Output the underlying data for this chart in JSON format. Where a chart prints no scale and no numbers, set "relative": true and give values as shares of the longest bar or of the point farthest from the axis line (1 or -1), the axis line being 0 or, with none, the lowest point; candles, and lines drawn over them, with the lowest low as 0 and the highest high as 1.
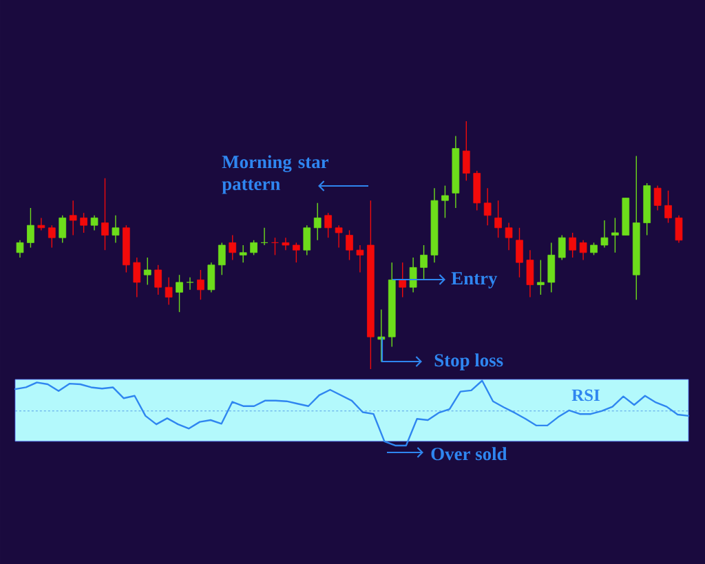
{
  "chart_data": [
    {
      "type": "candlestick",
      "relative": true,
      "categories": [
        null,
        null,
        null,
        null,
        null,
        null,
        null,
        null,
        null,
        null,
        null,
        null,
        null,
        null,
        null,
        null,
        null,
        null,
        null,
        null,
        null,
        null,
        null,
        null,
        null,
        null,
        null,
        null,
        null,
        null,
        null,
        null,
        null,
        null,
        null,
        null,
        null,
        null,
        null,
        null,
        null,
        null,
        null,
        null,
        null,
        null,
        null,
        null,
        null,
        null,
        null,
        null,
        null,
        null,
        null,
        null,
        null,
        null,
        null,
        null,
        null,
        null,
        null
      ],
      "ohlc": [
        [
          0.47,
          0.52,
          0.45,
          0.51
        ],
        [
          0.51,
          0.65,
          0.49,
          0.58
        ],
        [
          0.58,
          0.61,
          0.56,
          0.57
        ],
        [
          0.57,
          0.58,
          0.49,
          0.53
        ],
        [
          0.53,
          0.62,
          0.51,
          0.61
        ],
        [
          0.62,
          0.68,
          0.54,
          0.6
        ],
        [
          0.61,
          0.63,
          0.55,
          0.58
        ],
        [
          0.58,
          0.62,
          0.56,
          0.61
        ],
        [
          0.59,
          0.77,
          0.48,
          0.54
        ],
        [
          0.54,
          0.62,
          0.51,
          0.57
        ],
        [
          0.57,
          0.58,
          0.39,
          0.42
        ],
        [
          0.43,
          0.45,
          0.29,
          0.35
        ],
        [
          0.38,
          0.45,
          0.34,
          0.4
        ],
        [
          0.4,
          0.42,
          0.3,
          0.33
        ],
        [
          0.33,
          0.37,
          0.26,
          0.29
        ],
        [
          0.31,
          0.38,
          0.23,
          0.35
        ],
        [
          0.35,
          0.37,
          0.32,
          0.35
        ],
        [
          0.36,
          0.4,
          0.28,
          0.32
        ],
        [
          0.32,
          0.43,
          0.31,
          0.42
        ],
        [
          0.42,
          0.51,
          0.38,
          0.5
        ],
        [
          0.51,
          0.54,
          0.44,
          0.47
        ],
        [
          0.46,
          0.5,
          0.43,
          0.47
        ],
        [
          0.47,
          0.52,
          0.46,
          0.51
        ],
        [
          0.51,
          0.57,
          0.5,
          0.51
        ],
        [
          0.51,
          0.53,
          0.46,
          0.51
        ],
        [
          0.51,
          0.53,
          0.48,
          0.5
        ],
        [
          0.5,
          0.51,
          0.43,
          0.48
        ],
        [
          0.48,
          0.58,
          0.46,
          0.57
        ],
        [
          0.57,
          0.67,
          0.52,
          0.61
        ],
        [
          0.62,
          0.63,
          0.53,
          0.57
        ],
        [
          0.57,
          0.58,
          0.49,
          0.55
        ],
        [
          0.54,
          0.56,
          0.44,
          0.48
        ],
        [
          0.48,
          0.5,
          0.39,
          0.46
        ],
        [
          0.5,
          0.68,
          0,
          0.13
        ],
        [
          0.12,
          0.24,
          0.03,
          0.13
        ],
        [
          0.13,
          0.43,
          0.09,
          0.36
        ],
        [
          0.36,
          0.43,
          0.29,
          0.33
        ],
        [
          0.33,
          0.45,
          0.31,
          0.41
        ],
        [
          0.41,
          0.5,
          0.36,
          0.46
        ],
        [
          0.46,
          0.73,
          0.43,
          0.68
        ],
        [
          0.68,
          0.74,
          0.61,
          0.7
        ],
        [
          0.71,
          0.94,
          0.65,
          0.89
        ],
        [
          0.88,
          1,
          0.76,
          0.79
        ],
        [
          0.79,
          0.8,
          0.64,
          0.67
        ],
        [
          0.67,
          0.73,
          0.58,
          0.62
        ],
        [
          0.61,
          0.68,
          0.53,
          0.57
        ],
        [
          0.57,
          0.59,
          0.48,
          0.53
        ],
        [
          0.52,
          0.57,
          0.37,
          0.43
        ],
        [
          0.44,
          0.48,
          0.29,
          0.34
        ],
        [
          0.34,
          0.44,
          0.3,
          0.35
        ],
        [
          0.35,
          0.51,
          0.31,
          0.46
        ],
        [
          0.45,
          0.54,
          0.44,
          0.53
        ],
        [
          0.53,
          0.55,
          0.45,
          0.48
        ],
        [
          0.51,
          0.52,
          0.44,
          0.47
        ],
        [
          0.47,
          0.51,
          0.46,
          0.5
        ],
        [
          0.5,
          0.6,
          0.49,
          0.53
        ],
        [
          0.54,
          0.61,
          0.47,
          0.55
        ],
        [
          0.54,
          0.69,
          0.54,
          0.69
        ],
        [
          0.38,
          0.86,
          0.28,
          0.59
        ],
        [
          0.59,
          0.75,
          0.54,
          0.74
        ],
        [
          0.73,
          0.74,
          0.64,
          0.66
        ],
        [
          0.66,
          0.72,
          0.59,
          0.61
        ],
        [
          0.61,
          0.62,
          0.51,
          0.52
        ]
      ],
      "colors": [
        "#6ddd1b",
        "#6ddd1b",
        "#f20a0a",
        "#f20a0a",
        "#6ddd1b",
        "#f20a0a",
        "#f20a0a",
        "#6ddd1b",
        "#f20a0a",
        "#6ddd1b",
        "#f20a0a",
        "#f20a0a",
        "#6ddd1b",
        "#f20a0a",
        "#f20a0a",
        "#6ddd1b",
        "#6ddd1b",
        "#f20a0a",
        "#6ddd1b",
        "#6ddd1b",
        "#f20a0a",
        "#6ddd1b",
        "#6ddd1b",
        "#6ddd1b",
        "#f20a0a",
        "#f20a0a",
        "#f20a0a",
        "#6ddd1b",
        "#6ddd1b",
        "#f20a0a",
        "#f20a0a",
        "#f20a0a",
        "#f20a0a",
        "#f20a0a",
        "#6ddd1b",
        "#6ddd1b",
        "#f20a0a",
        "#6ddd1b",
        "#6ddd1b",
        "#6ddd1b",
        "#6ddd1b",
        "#6ddd1b",
        "#f20a0a",
        "#f20a0a",
        "#f20a0a",
        "#f20a0a",
        "#f20a0a",
        "#f20a0a",
        "#f20a0a",
        "#6ddd1b",
        "#6ddd1b",
        "#6ddd1b",
        "#f20a0a",
        "#f20a0a",
        "#6ddd1b",
        "#6ddd1b",
        "#6ddd1b",
        "#6ddd1b",
        "#6ddd1b",
        "#6ddd1b",
        "#f20a0a",
        "#f20a0a",
        "#f20a0a"
      ],
      "annotations": [
        "Morning star pattern",
        "Entry",
        "Stop loss"
      ]
    },
    {
      "type": "line",
      "relative": true,
      "color": "#2f86f0",
      "categories": [
        null,
        null,
        null,
        null,
        null,
        null,
        null,
        null,
        null,
        null,
        null,
        null,
        null,
        null,
        null,
        null,
        null,
        null,
        null,
        null,
        null,
        null,
        null,
        null,
        null,
        null,
        null,
        null,
        null,
        null,
        null,
        null,
        null,
        null,
        null,
        null,
        null,
        null,
        null,
        null,
        null,
        null,
        null,
        null,
        null,
        null,
        null,
        null,
        null,
        null,
        null,
        null,
        null,
        null,
        null,
        null,
        null,
        null,
        null,
        null,
        null,
        null,
        null
      ],
      "values": [
        0.86,
        0.89,
        0.97,
        0.94,
        0.83,
        0.95,
        0.94,
        0.89,
        0.87,
        0.89,
        0.71,
        0.75,
        0.42,
        0.28,
        0.38,
        0.28,
        0.21,
        0.32,
        0.35,
        0.29,
        0.65,
        0.58,
        0.58,
        0.67,
        0.67,
        0.66,
        0.62,
        0.58,
        0.76,
        0.85,
        0.76,
        0.67,
        0.48,
        0.45,
        0,
        -0.07,
        -0.07,
        0.37,
        0.35,
        0.47,
        0.53,
        0.82,
        0.84,
        1,
        0.66,
        0.56,
        0.47,
        0.37,
        0.26,
        0.26,
        0.4,
        0.51,
        0.45,
        0.45,
        0.5,
        0.57,
        0.74,
        0.6,
        0.75,
        0.64,
        0.57,
        0.44,
        0.42
      ],
      "bands": [
        {
          "axis": "y",
          "from": 0,
          "to": 1.02,
          "color": "#b3f9fc"
        }
      ],
      "ref_lines": [
        {
          "axis": "y",
          "value": 0.5,
          "line_style": "dashed",
          "color": "#4b93e6"
        }
      ],
      "annotations": [
        "RSI",
        "Over sold"
      ]
    }
  ]
}
